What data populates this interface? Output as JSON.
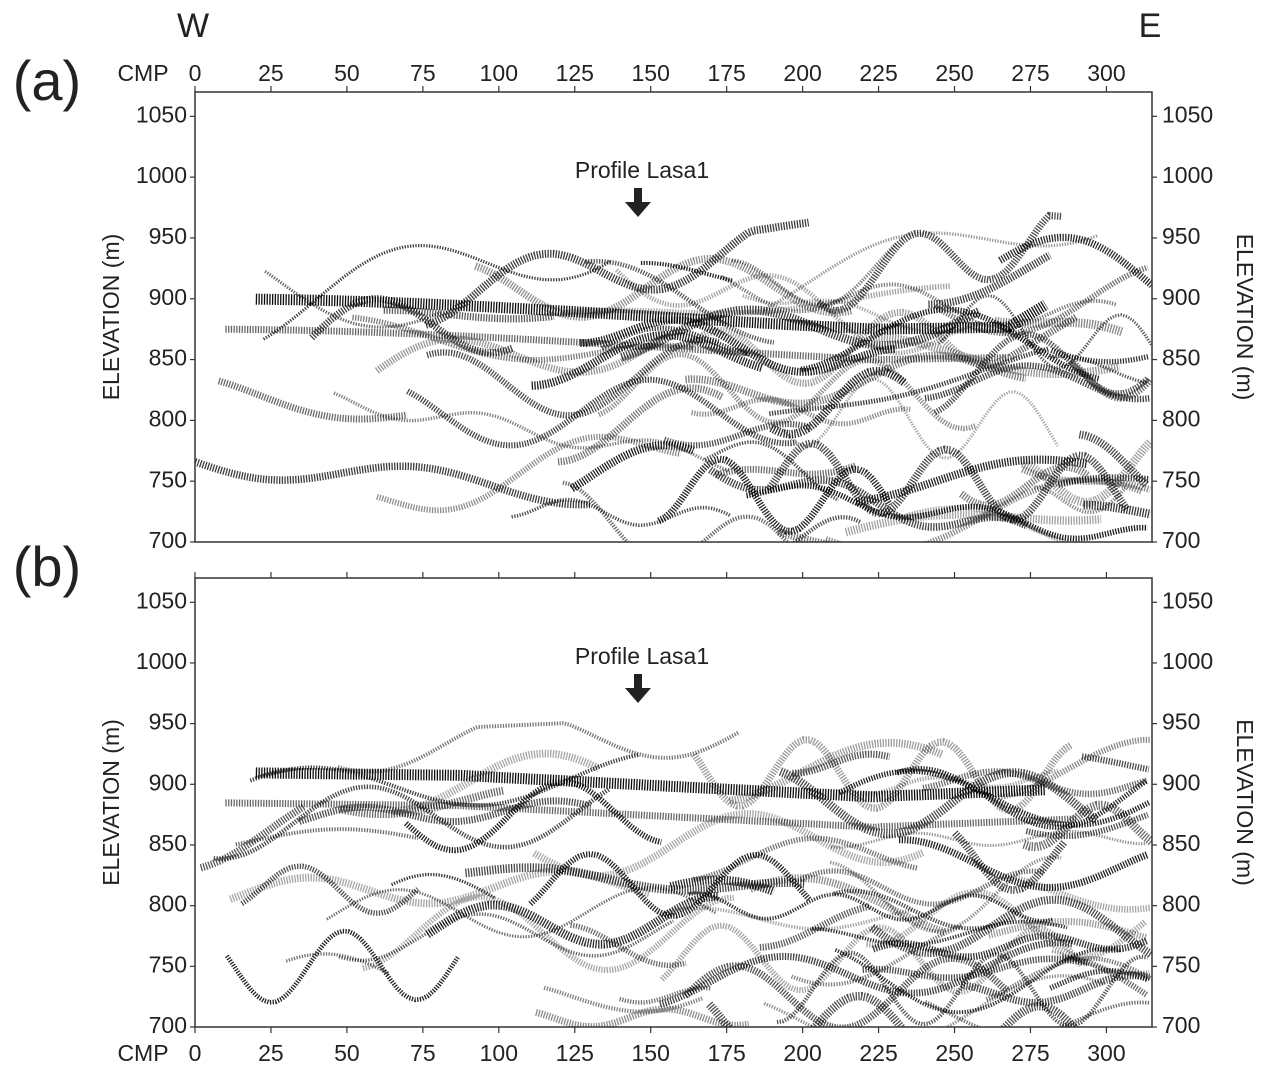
{
  "figure": {
    "west_label": "W",
    "east_label": "E",
    "x_axis_label": "CMP",
    "y_axis_label": "ELEVATION (m)",
    "xlim": [
      0,
      315
    ],
    "xticks": [
      0,
      25,
      50,
      75,
      100,
      125,
      150,
      175,
      200,
      225,
      250,
      275,
      300
    ],
    "ylim": [
      700,
      1070
    ],
    "yticks": [
      700,
      750,
      800,
      850,
      900,
      950,
      1000,
      1050
    ],
    "panels": [
      {
        "label": "(a)",
        "annotation": "Profile Lasa1"
      },
      {
        "label": "(b)",
        "annotation": "Profile Lasa1"
      }
    ]
  }
}
